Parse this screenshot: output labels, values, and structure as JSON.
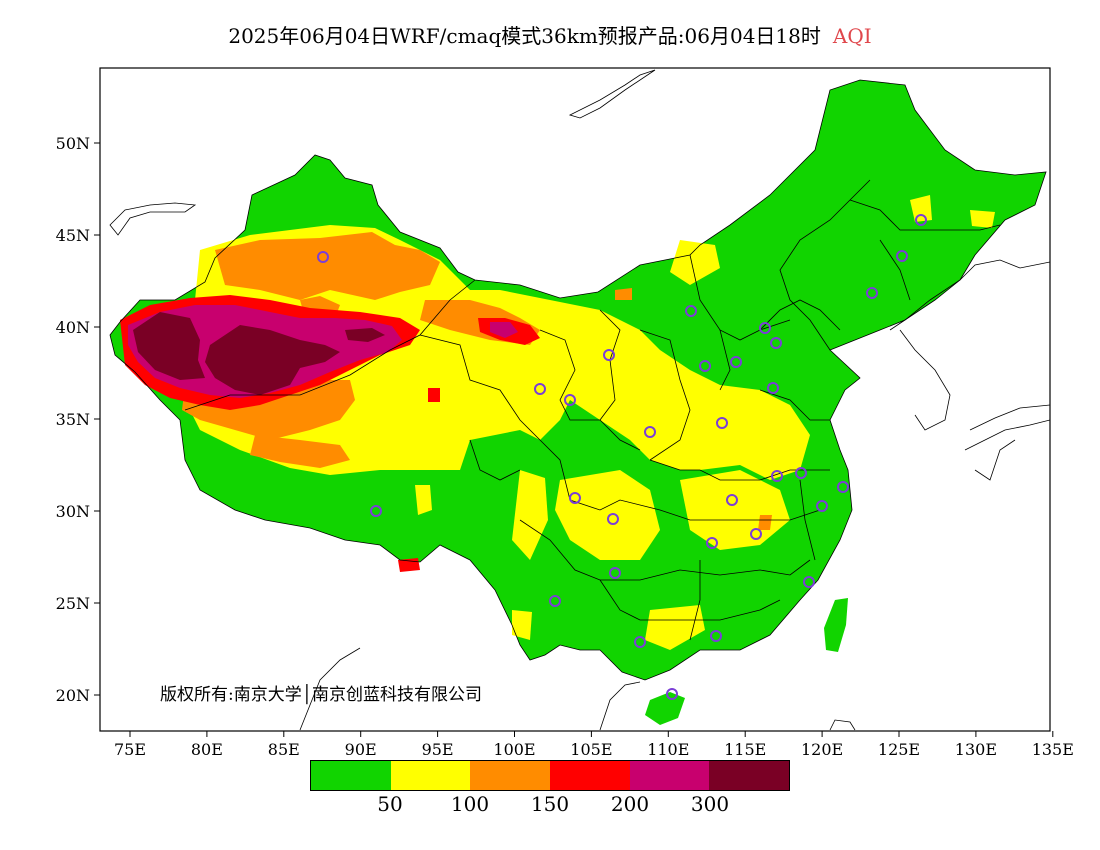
{
  "header": {
    "title": "2025年06月04日WRF/cmaq模式36km预报产品:06月04日18时",
    "variable": "AQI",
    "variable_color": "#e0474c"
  },
  "map": {
    "lat_labels": [
      "50N",
      "45N",
      "40N",
      "35N",
      "30N",
      "25N",
      "20N"
    ],
    "lon_labels": [
      "75E",
      "80E",
      "85E",
      "90E",
      "95E",
      "100E",
      "105E",
      "110E",
      "115E",
      "120E",
      "125E",
      "130E",
      "135E"
    ],
    "copyright": "版权所有:南京大学│南京创蓝科技有限公司",
    "site_marker_color": "#7b3fd6"
  },
  "legend": {
    "colors": [
      "#11d400",
      "#ffff00",
      "#ff8c00",
      "#ff0000",
      "#c8006e",
      "#7a0025"
    ],
    "labels": [
      "50",
      "100",
      "150",
      "200",
      "300"
    ]
  }
}
